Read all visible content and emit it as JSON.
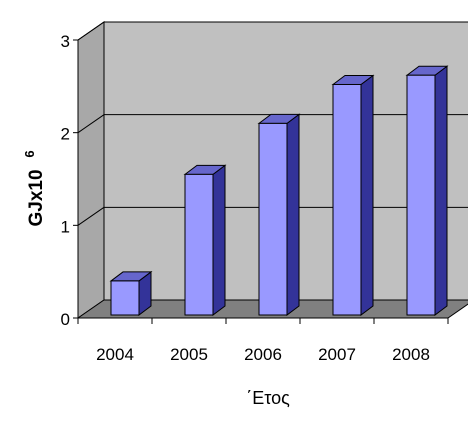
{
  "chart_data": {
    "type": "bar",
    "style": "3d-column",
    "categories": [
      "2004",
      "2005",
      "2006",
      "2007",
      "2008"
    ],
    "values": [
      0.4,
      1.55,
      2.1,
      2.52,
      2.62
    ],
    "ylim": [
      0,
      3
    ],
    "yticks": [
      "0",
      "1",
      "2",
      "3"
    ],
    "ylabel": "GJx10",
    "ylabel_exponent": "6",
    "xlabel": "΄Ετος",
    "grid": true,
    "legend": "none",
    "colors": {
      "bar_front": "#9999ff",
      "bar_side": "#333399",
      "bar_top": "#6666cc",
      "back_wall": "#c0c0c0",
      "side_wall": "#a8a8a8",
      "floor": "#808080",
      "gridline": "#000000"
    }
  }
}
